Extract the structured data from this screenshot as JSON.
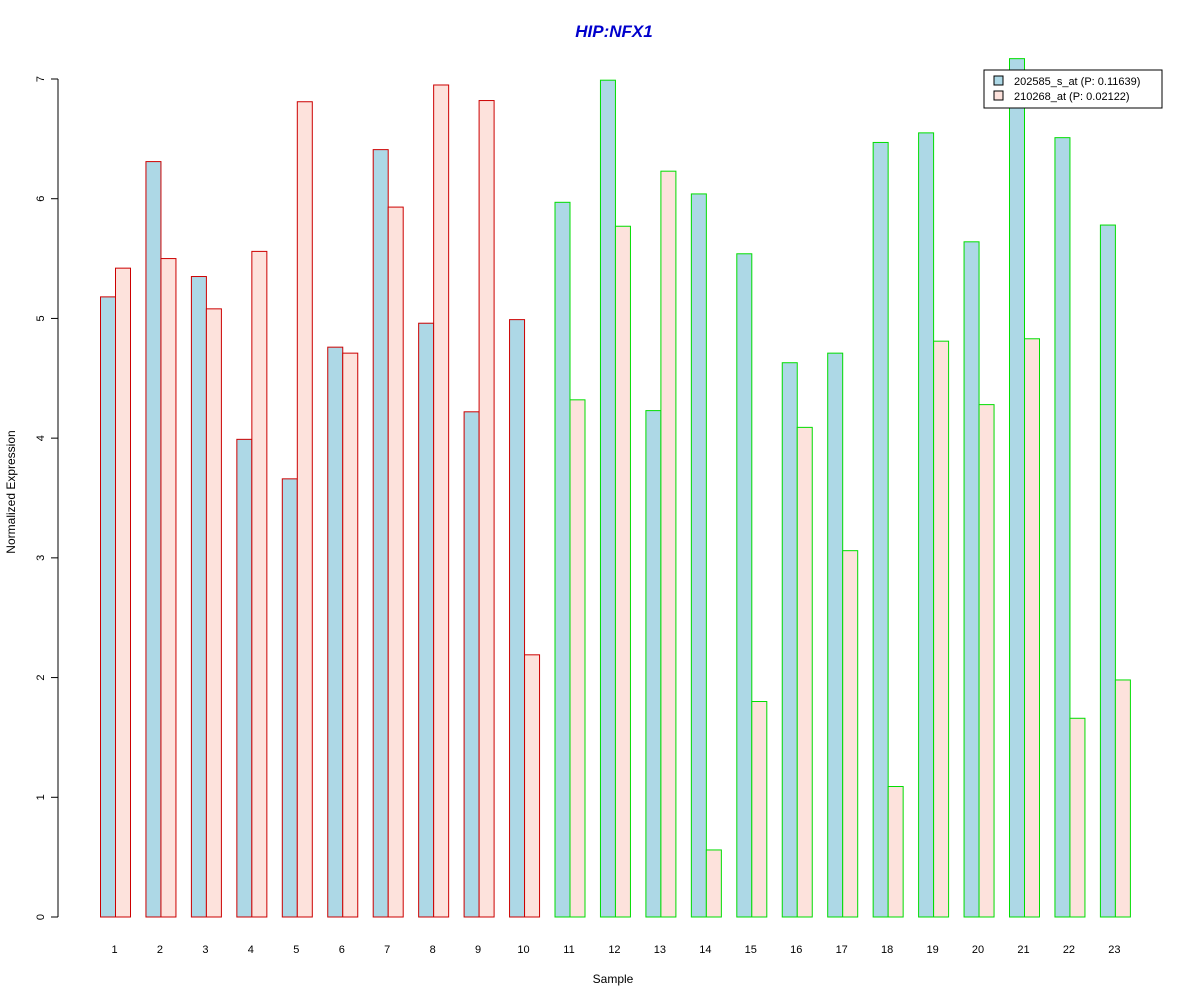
{
  "chart_data": {
    "type": "bar",
    "title": "HIP:NFX1",
    "title_color": "#0000cc",
    "xlabel": "Sample",
    "ylabel": "Normalized Expression",
    "ylim": [
      0,
      7
    ],
    "yticks": [
      0,
      1,
      2,
      3,
      4,
      5,
      6,
      7
    ],
    "legend_position": "top-right",
    "grid": false,
    "categories": [
      "1",
      "2",
      "3",
      "4",
      "5",
      "6",
      "7",
      "8",
      "9",
      "10",
      "11",
      "12",
      "13",
      "14",
      "15",
      "16",
      "17",
      "18",
      "19",
      "20",
      "21",
      "22",
      "23"
    ],
    "group_border_colors": [
      "#cc0000",
      "#cc0000",
      "#cc0000",
      "#cc0000",
      "#cc0000",
      "#cc0000",
      "#cc0000",
      "#cc0000",
      "#cc0000",
      "#cc0000",
      "#00dd00",
      "#00dd00",
      "#00dd00",
      "#00dd00",
      "#00dd00",
      "#00dd00",
      "#00dd00",
      "#00dd00",
      "#00dd00",
      "#00dd00",
      "#00dd00",
      "#00dd00",
      "#00dd00"
    ],
    "series": [
      {
        "name": "202585_s_at (P: 0.11639)",
        "fill": "#add8e6",
        "values": [
          5.18,
          6.31,
          5.35,
          3.99,
          3.66,
          4.76,
          6.41,
          4.96,
          4.22,
          4.99,
          5.97,
          6.99,
          4.23,
          6.04,
          5.54,
          4.63,
          4.71,
          6.47,
          6.55,
          5.64,
          7.17,
          6.51,
          5.78
        ]
      },
      {
        "name": "210268_at (P: 0.02122)",
        "fill": "#fde2dc",
        "values": [
          5.42,
          5.5,
          5.08,
          5.56,
          6.81,
          4.71,
          5.93,
          6.95,
          6.82,
          2.19,
          4.32,
          5.77,
          6.23,
          0.56,
          1.8,
          4.09,
          3.06,
          1.09,
          4.81,
          4.28,
          4.83,
          1.66,
          1.98
        ]
      }
    ]
  }
}
